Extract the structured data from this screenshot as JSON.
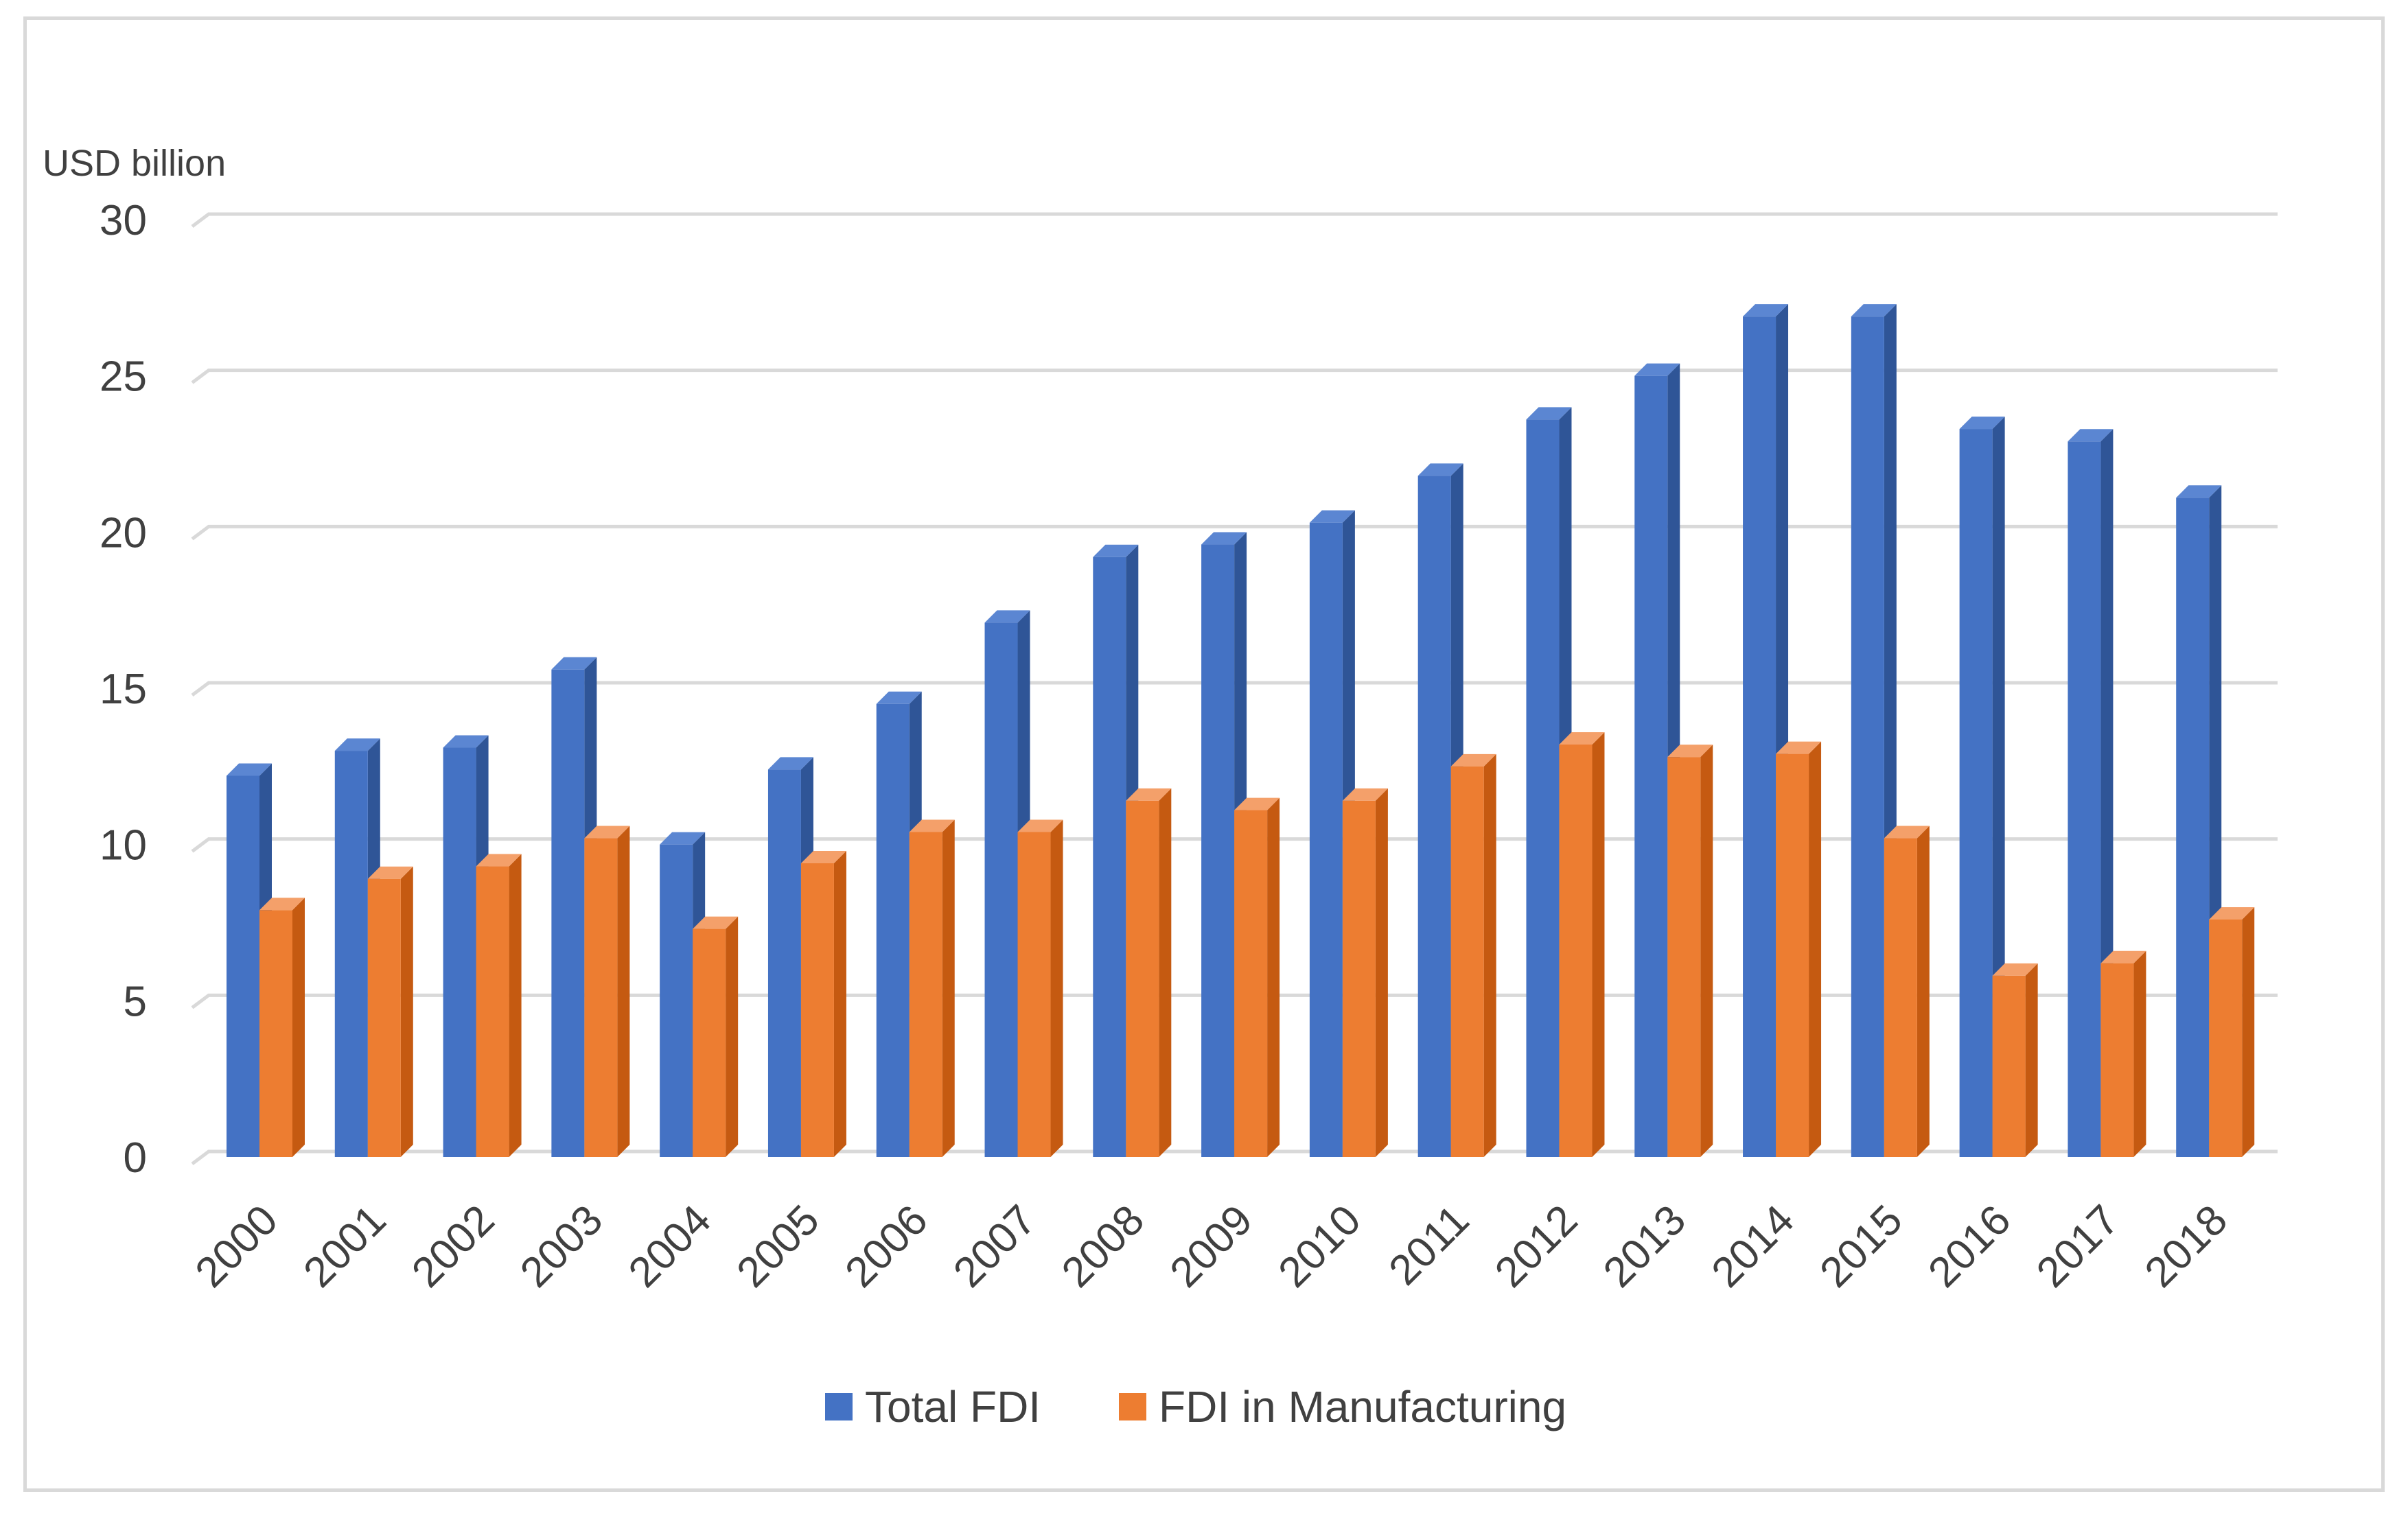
{
  "chart_data": {
    "type": "bar",
    "title": "",
    "xlabel": "",
    "ylabel": "USD billion",
    "ylim": [
      0,
      30
    ],
    "yticks": [
      0,
      5,
      10,
      15,
      20,
      25,
      30
    ],
    "grid": true,
    "legend_position": "bottom",
    "categories": [
      "2000",
      "2001",
      "2002",
      "2003",
      "2004",
      "2005",
      "2006",
      "2007",
      "2008",
      "2009",
      "2010",
      "2011",
      "2012",
      "2013",
      "2014",
      "2015",
      "2016",
      "2017",
      "2018"
    ],
    "series": [
      {
        "name": "Total FDI",
        "color": "#4472c4",
        "side_color": "#2f5597",
        "top_color": "#5b86d2",
        "values": [
          12.2,
          13.0,
          13.1,
          15.6,
          10.0,
          12.4,
          14.5,
          17.1,
          19.2,
          19.6,
          20.3,
          21.8,
          23.6,
          25.0,
          26.9,
          26.9,
          23.3,
          22.9,
          21.1
        ]
      },
      {
        "name": "FDI in Manufacturing",
        "color": "#ed7d31",
        "side_color": "#c55a11",
        "top_color": "#f4a06a",
        "values": [
          7.9,
          8.9,
          9.3,
          10.2,
          7.3,
          9.4,
          10.4,
          10.4,
          11.4,
          11.1,
          11.4,
          12.5,
          13.2,
          12.8,
          12.9,
          10.2,
          5.8,
          6.2,
          7.6
        ]
      }
    ]
  }
}
